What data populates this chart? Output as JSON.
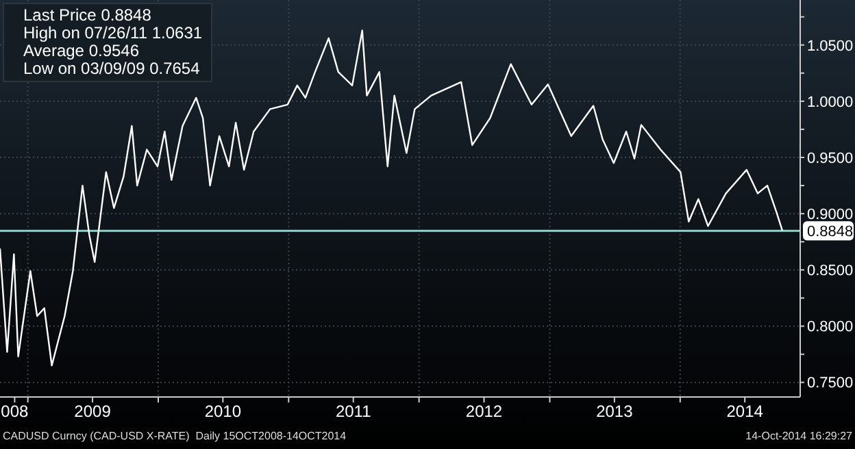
{
  "chart_data": {
    "type": "line",
    "x": [
      "2008-10-15",
      "2008-11-04",
      "2008-11-23",
      "2008-12-05",
      "2009-01-08",
      "2009-01-27",
      "2009-02-16",
      "2009-03-09",
      "2009-04-14",
      "2009-05-07",
      "2009-06-03",
      "2009-06-22",
      "2009-07-07",
      "2009-08-08",
      "2009-08-30",
      "2009-09-26",
      "2009-10-19",
      "2009-11-03",
      "2009-11-30",
      "2009-12-30",
      "2010-01-19",
      "2010-02-07",
      "2010-03-10",
      "2010-04-17",
      "2010-05-06",
      "2010-05-26",
      "2010-06-21",
      "2010-07-18",
      "2010-08-06",
      "2010-08-29",
      "2010-09-25",
      "2010-11-10",
      "2010-12-29",
      "2011-01-25",
      "2011-02-17",
      "2011-03-16",
      "2011-04-23",
      "2011-05-20",
      "2011-06-28",
      "2011-07-26",
      "2011-08-08",
      "2011-09-12",
      "2011-10-05",
      "2011-10-24",
      "2011-11-27",
      "2011-12-20",
      "2012-02-04",
      "2012-04-28",
      "2012-05-29",
      "2012-07-18",
      "2012-09-14",
      "2012-11-11",
      "2012-12-27",
      "2013-03-02",
      "2013-05-03",
      "2013-05-29",
      "2013-06-29",
      "2013-08-03",
      "2013-08-26",
      "2013-09-14",
      "2013-11-07",
      "2014-01-02",
      "2014-01-25",
      "2014-02-21",
      "2014-03-20",
      "2014-05-09",
      "2014-07-06",
      "2014-08-06",
      "2014-09-02",
      "2014-09-28",
      "2014-10-14"
    ],
    "series": [
      {
        "color": "#ffffff",
        "values": [
          0.869,
          0.777,
          0.864,
          0.773,
          0.849,
          0.809,
          0.816,
          0.765,
          0.809,
          0.849,
          0.925,
          0.881,
          0.857,
          0.937,
          0.905,
          0.933,
          0.978,
          0.925,
          0.957,
          0.942,
          0.973,
          0.93,
          0.978,
          1.003,
          0.985,
          0.925,
          0.969,
          0.942,
          0.981,
          0.939,
          0.973,
          0.993,
          0.997,
          1.014,
          1.003,
          1.026,
          1.056,
          1.026,
          1.014,
          1.063,
          1.005,
          1.026,
          0.942,
          1.005,
          0.954,
          0.993,
          1.005,
          1.017,
          0.961,
          0.985,
          1.033,
          0.997,
          1.015,
          0.969,
          0.996,
          0.966,
          0.945,
          0.973,
          0.949,
          0.979,
          0.957,
          0.937,
          0.893,
          0.913,
          0.889,
          0.918,
          0.939,
          0.918,
          0.925,
          0.901,
          0.885
        ]
      }
    ],
    "xlim": [
      "2008-10-15",
      "2014-12-03"
    ],
    "xticks": [
      {
        "value": "2008-11-25",
        "label": "008"
      },
      {
        "value": "2009-01-01",
        "label": null
      },
      {
        "value": "2009-07-01",
        "label": "2009"
      },
      {
        "value": "2010-01-01",
        "label": null
      },
      {
        "value": "2010-07-01",
        "label": "2010"
      },
      {
        "value": "2011-01-01",
        "label": null
      },
      {
        "value": "2011-07-01",
        "label": "2011"
      },
      {
        "value": "2012-01-01",
        "label": null
      },
      {
        "value": "2012-07-01",
        "label": "2012"
      },
      {
        "value": "2013-01-01",
        "label": null
      },
      {
        "value": "2013-07-01",
        "label": "2013"
      },
      {
        "value": "2014-01-01",
        "label": null
      },
      {
        "value": "2014-07-01",
        "label": "2014"
      }
    ],
    "ylim": [
      0.737,
      1.09
    ],
    "yticks": [
      {
        "value": 0.75,
        "label": "0.7500"
      },
      {
        "value": 0.775,
        "label": null
      },
      {
        "value": 0.8,
        "label": "0.8000"
      },
      {
        "value": 0.825,
        "label": null
      },
      {
        "value": 0.85,
        "label": "0.8500"
      },
      {
        "value": 0.875,
        "label": null
      },
      {
        "value": 0.9,
        "label": "0.9000"
      },
      {
        "value": 0.925,
        "label": null
      },
      {
        "value": 0.95,
        "label": "0.9500"
      },
      {
        "value": 0.975,
        "label": null
      },
      {
        "value": 1.0,
        "label": "1.0000"
      },
      {
        "value": 1.025,
        "label": null
      },
      {
        "value": 1.05,
        "label": "1.0500"
      },
      {
        "value": 1.075,
        "label": null
      }
    ],
    "grid": true,
    "marker": "none",
    "ref_lines": [
      {
        "axis": "y",
        "value": 0.8848,
        "label": "0.8848",
        "color": "#8fd3c9"
      }
    ],
    "annotations": [
      "Last Price 0.8848",
      "High on 07/26/11 1.0631",
      "Average 0.9546",
      "Low on 03/09/09 0.7654",
      "CADUSD Curncy (CAD-USD X-RATE)  Daily 15OCT2008-14OCT2014",
      "14-Oct-2014 16:29:27"
    ]
  }
}
